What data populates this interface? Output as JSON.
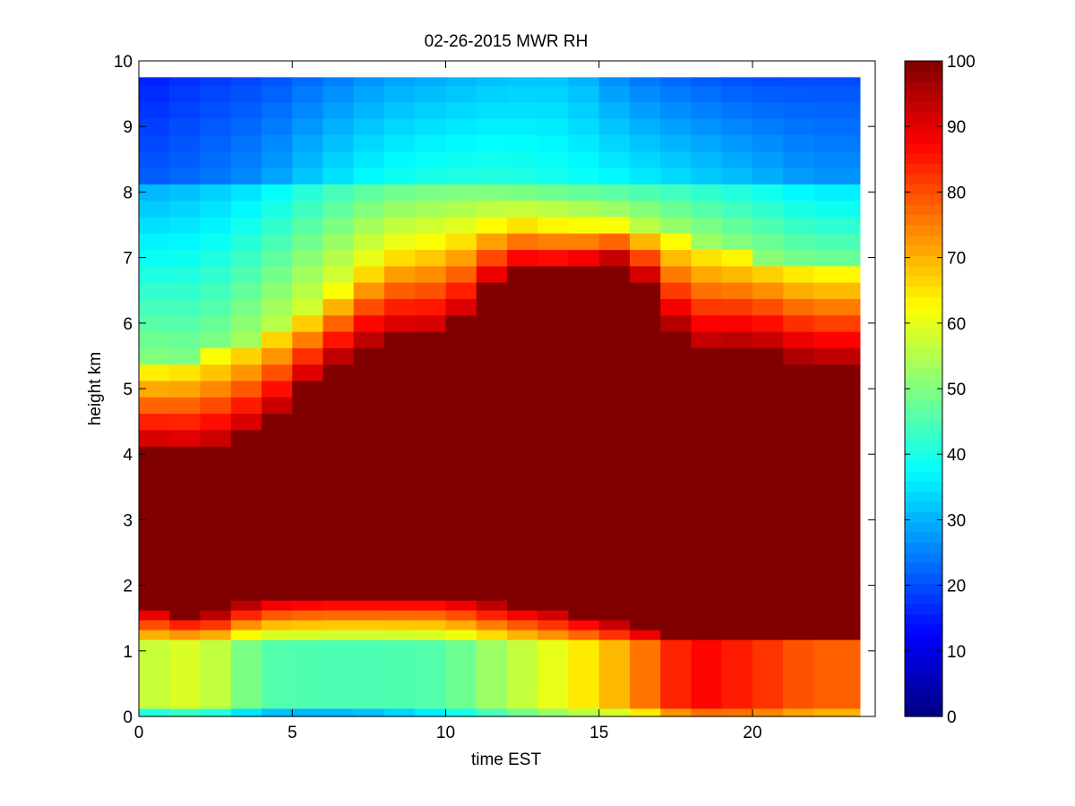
{
  "chart_data": {
    "type": "heatmap",
    "title": "02-26-2015 MWR RH",
    "xlabel": "time EST",
    "ylabel": "height km",
    "xlim": [
      0,
      24
    ],
    "ylim": [
      0,
      10
    ],
    "x_ticks": [
      0,
      5,
      10,
      15,
      20
    ],
    "y_ticks": [
      0,
      1,
      2,
      3,
      4,
      5,
      6,
      7,
      8,
      9,
      10
    ],
    "colorbar": {
      "colormap": "jet",
      "range": [
        0,
        100
      ],
      "ticks": [
        0,
        10,
        20,
        30,
        40,
        50,
        60,
        70,
        80,
        90,
        100
      ]
    },
    "grid": false,
    "time_columns": {
      "x_edges": [
        0,
        1,
        2,
        3,
        4,
        5,
        6,
        7,
        8,
        9,
        10,
        11,
        12,
        13,
        14,
        15,
        16,
        17,
        18,
        19,
        20,
        21,
        22,
        23.5
      ]
    },
    "heights_km": [
      0.05,
      0.2,
      0.35,
      0.5,
      0.65,
      0.8,
      0.95,
      1.1,
      1.25,
      1.4,
      1.55,
      1.7,
      1.85,
      2.0,
      2.5,
      3.0,
      3.5,
      4.0,
      4.25,
      4.5,
      4.75,
      5.0,
      5.25,
      5.5,
      5.75,
      6.0,
      6.25,
      6.5,
      6.75,
      7.0,
      7.25,
      7.5,
      7.75,
      8.0,
      8.25,
      8.5,
      8.75,
      9.0,
      9.25,
      9.5,
      9.75
    ],
    "profile_rows": [
      {
        "x": 0,
        "surface": 48,
        "low_band": 56,
        "low_top": 1.2,
        "base_top": 1.25,
        "cloud_base": 1.7,
        "cloud_top": 4.1,
        "sat_top": 5.3,
        "mid_rh": 52,
        "upper_rh": 22,
        "top_rh": 15
      },
      {
        "x": 2,
        "surface": 52,
        "low_band": 60,
        "low_top": 1.2,
        "base_top": 1.25,
        "cloud_base": 1.5,
        "cloud_top": 4.0,
        "sat_top": 5.4,
        "mid_rh": 50,
        "upper_rh": 24,
        "top_rh": 18
      },
      {
        "x": 4,
        "surface": 40,
        "low_band": 46,
        "low_top": 1.2,
        "base_top": 1.3,
        "cloud_base": 1.8,
        "cloud_top": 4.4,
        "sat_top": 5.8,
        "mid_rh": 55,
        "upper_rh": 28,
        "top_rh": 20
      },
      {
        "x": 6,
        "surface": 38,
        "low_band": 45,
        "low_top": 1.2,
        "base_top": 1.35,
        "cloud_base": 1.85,
        "cloud_top": 5.3,
        "sat_top": 6.3,
        "mid_rh": 60,
        "upper_rh": 35,
        "top_rh": 24
      },
      {
        "x": 8,
        "surface": 40,
        "low_band": 45,
        "low_top": 1.2,
        "base_top": 1.4,
        "cloud_base": 1.85,
        "cloud_top": 5.8,
        "sat_top": 7.1,
        "mid_rh": 62,
        "upper_rh": 40,
        "top_rh": 28
      },
      {
        "x": 10,
        "surface": 45,
        "low_band": 46,
        "low_top": 1.2,
        "base_top": 1.35,
        "cloud_base": 1.85,
        "cloud_top": 5.8,
        "sat_top": 7.3,
        "mid_rh": 62,
        "upper_rh": 42,
        "top_rh": 30
      },
      {
        "x": 12,
        "surface": 55,
        "low_band": 55,
        "low_top": 1.2,
        "base_top": 1.3,
        "cloud_base": 1.7,
        "cloud_top": 6.8,
        "sat_top": 7.6,
        "mid_rh": 62,
        "upper_rh": 42,
        "top_rh": 32
      },
      {
        "x": 14,
        "surface": 62,
        "low_band": 62,
        "low_top": 1.2,
        "base_top": 1.3,
        "cloud_base": 1.6,
        "cloud_top": 6.8,
        "sat_top": 7.5,
        "mid_rh": 62,
        "upper_rh": 40,
        "top_rh": 32
      },
      {
        "x": 16,
        "surface": 68,
        "low_band": 72,
        "low_top": 1.2,
        "base_top": 1.25,
        "cloud_base": 1.4,
        "cloud_top": 7.0,
        "sat_top": 7.5,
        "mid_rh": 58,
        "upper_rh": 38,
        "top_rh": 25
      },
      {
        "x": 18,
        "surface": 85,
        "low_band": 88,
        "low_top": 1.2,
        "base_top": 1.2,
        "cloud_base": 1.2,
        "cloud_top": 5.6,
        "sat_top": 7.2,
        "mid_rh": 55,
        "upper_rh": 35,
        "top_rh": 22
      },
      {
        "x": 20,
        "surface": 84,
        "low_band": 84,
        "low_top": 1.2,
        "base_top": 1.2,
        "cloud_base": 1.2,
        "cloud_top": 5.7,
        "sat_top": 7.0,
        "mid_rh": 52,
        "upper_rh": 32,
        "top_rh": 20
      },
      {
        "x": 22,
        "surface": 78,
        "low_band": 78,
        "low_top": 1.2,
        "base_top": 1.2,
        "cloud_base": 1.2,
        "cloud_top": 5.4,
        "sat_top": 6.8,
        "mid_rh": 50,
        "upper_rh": 28,
        "top_rh": 20
      }
    ]
  }
}
